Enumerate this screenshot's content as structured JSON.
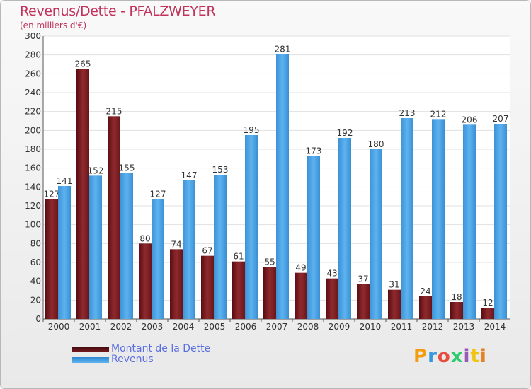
{
  "header": {
    "title": "Revenus/Dette - PFALZWEYER",
    "subtitle": "(en milliers d'€)"
  },
  "chart_data": {
    "type": "bar",
    "categories": [
      "2000",
      "2001",
      "2002",
      "2003",
      "2004",
      "2005",
      "2006",
      "2007",
      "2008",
      "2009",
      "2010",
      "2011",
      "2012",
      "2013",
      "2014"
    ],
    "series": [
      {
        "name": "Montant de la Dette",
        "color": "#7a1a1e",
        "values": [
          127,
          265,
          215,
          80,
          74,
          67,
          61,
          55,
          49,
          43,
          37,
          31,
          24,
          18,
          12
        ]
      },
      {
        "name": "Revenus",
        "color": "#4aa3e3",
        "values": [
          141,
          152,
          155,
          127,
          147,
          153,
          195,
          281,
          173,
          192,
          180,
          213,
          212,
          206,
          207
        ]
      }
    ],
    "ylim": [
      0,
      300
    ],
    "yticks": [
      0,
      20,
      40,
      60,
      80,
      100,
      120,
      140,
      160,
      180,
      200,
      220,
      240,
      260,
      280,
      300
    ],
    "grid": true,
    "legend_position": "bottom-left"
  },
  "logo": {
    "letters": [
      "P",
      "r",
      "o",
      "x",
      "i",
      "t",
      "i"
    ],
    "colors": [
      "#f39c12",
      "#3498db",
      "#e74c3c",
      "#2ecc71",
      "#9b59b6",
      "#f1c40f",
      "#e67e22"
    ]
  }
}
